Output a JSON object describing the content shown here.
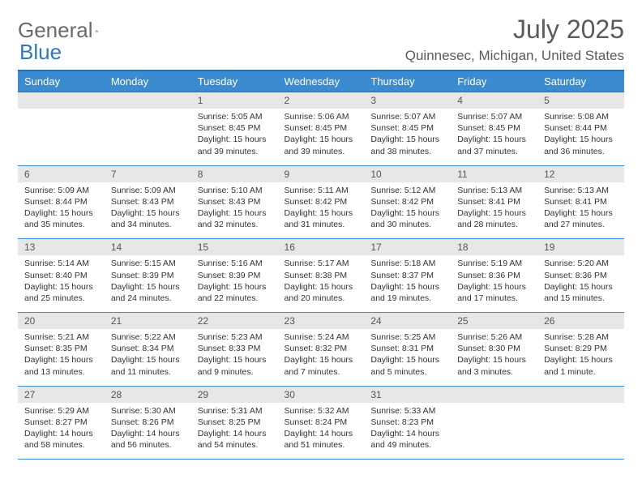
{
  "brand": {
    "word1": "General",
    "word2": "Blue"
  },
  "title": "July 2025",
  "location": "Quinnesec, Michigan, United States",
  "colors": {
    "header_bg": "#3b8bd0",
    "header_border": "#2f6da8",
    "daynum_bg": "#e7e7e7",
    "text": "#333333",
    "brand_gray": "#6a6a6a",
    "brand_blue": "#2f78bf"
  },
  "weekdays": [
    "Sunday",
    "Monday",
    "Tuesday",
    "Wednesday",
    "Thursday",
    "Friday",
    "Saturday"
  ],
  "weeks": [
    [
      null,
      null,
      {
        "n": "1",
        "sr": "5:05 AM",
        "ss": "8:45 PM",
        "dl": "15 hours and 39 minutes."
      },
      {
        "n": "2",
        "sr": "5:06 AM",
        "ss": "8:45 PM",
        "dl": "15 hours and 39 minutes."
      },
      {
        "n": "3",
        "sr": "5:07 AM",
        "ss": "8:45 PM",
        "dl": "15 hours and 38 minutes."
      },
      {
        "n": "4",
        "sr": "5:07 AM",
        "ss": "8:45 PM",
        "dl": "15 hours and 37 minutes."
      },
      {
        "n": "5",
        "sr": "5:08 AM",
        "ss": "8:44 PM",
        "dl": "15 hours and 36 minutes."
      }
    ],
    [
      {
        "n": "6",
        "sr": "5:09 AM",
        "ss": "8:44 PM",
        "dl": "15 hours and 35 minutes."
      },
      {
        "n": "7",
        "sr": "5:09 AM",
        "ss": "8:43 PM",
        "dl": "15 hours and 34 minutes."
      },
      {
        "n": "8",
        "sr": "5:10 AM",
        "ss": "8:43 PM",
        "dl": "15 hours and 32 minutes."
      },
      {
        "n": "9",
        "sr": "5:11 AM",
        "ss": "8:42 PM",
        "dl": "15 hours and 31 minutes."
      },
      {
        "n": "10",
        "sr": "5:12 AM",
        "ss": "8:42 PM",
        "dl": "15 hours and 30 minutes."
      },
      {
        "n": "11",
        "sr": "5:13 AM",
        "ss": "8:41 PM",
        "dl": "15 hours and 28 minutes."
      },
      {
        "n": "12",
        "sr": "5:13 AM",
        "ss": "8:41 PM",
        "dl": "15 hours and 27 minutes."
      }
    ],
    [
      {
        "n": "13",
        "sr": "5:14 AM",
        "ss": "8:40 PM",
        "dl": "15 hours and 25 minutes."
      },
      {
        "n": "14",
        "sr": "5:15 AM",
        "ss": "8:39 PM",
        "dl": "15 hours and 24 minutes."
      },
      {
        "n": "15",
        "sr": "5:16 AM",
        "ss": "8:39 PM",
        "dl": "15 hours and 22 minutes."
      },
      {
        "n": "16",
        "sr": "5:17 AM",
        "ss": "8:38 PM",
        "dl": "15 hours and 20 minutes."
      },
      {
        "n": "17",
        "sr": "5:18 AM",
        "ss": "8:37 PM",
        "dl": "15 hours and 19 minutes."
      },
      {
        "n": "18",
        "sr": "5:19 AM",
        "ss": "8:36 PM",
        "dl": "15 hours and 17 minutes."
      },
      {
        "n": "19",
        "sr": "5:20 AM",
        "ss": "8:36 PM",
        "dl": "15 hours and 15 minutes."
      }
    ],
    [
      {
        "n": "20",
        "sr": "5:21 AM",
        "ss": "8:35 PM",
        "dl": "15 hours and 13 minutes."
      },
      {
        "n": "21",
        "sr": "5:22 AM",
        "ss": "8:34 PM",
        "dl": "15 hours and 11 minutes."
      },
      {
        "n": "22",
        "sr": "5:23 AM",
        "ss": "8:33 PM",
        "dl": "15 hours and 9 minutes."
      },
      {
        "n": "23",
        "sr": "5:24 AM",
        "ss": "8:32 PM",
        "dl": "15 hours and 7 minutes."
      },
      {
        "n": "24",
        "sr": "5:25 AM",
        "ss": "8:31 PM",
        "dl": "15 hours and 5 minutes."
      },
      {
        "n": "25",
        "sr": "5:26 AM",
        "ss": "8:30 PM",
        "dl": "15 hours and 3 minutes."
      },
      {
        "n": "26",
        "sr": "5:28 AM",
        "ss": "8:29 PM",
        "dl": "15 hours and 1 minute."
      }
    ],
    [
      {
        "n": "27",
        "sr": "5:29 AM",
        "ss": "8:27 PM",
        "dl": "14 hours and 58 minutes."
      },
      {
        "n": "28",
        "sr": "5:30 AM",
        "ss": "8:26 PM",
        "dl": "14 hours and 56 minutes."
      },
      {
        "n": "29",
        "sr": "5:31 AM",
        "ss": "8:25 PM",
        "dl": "14 hours and 54 minutes."
      },
      {
        "n": "30",
        "sr": "5:32 AM",
        "ss": "8:24 PM",
        "dl": "14 hours and 51 minutes."
      },
      {
        "n": "31",
        "sr": "5:33 AM",
        "ss": "8:23 PM",
        "dl": "14 hours and 49 minutes."
      },
      null,
      null
    ]
  ],
  "labels": {
    "sunrise": "Sunrise:",
    "sunset": "Sunset:",
    "daylight": "Daylight:"
  }
}
